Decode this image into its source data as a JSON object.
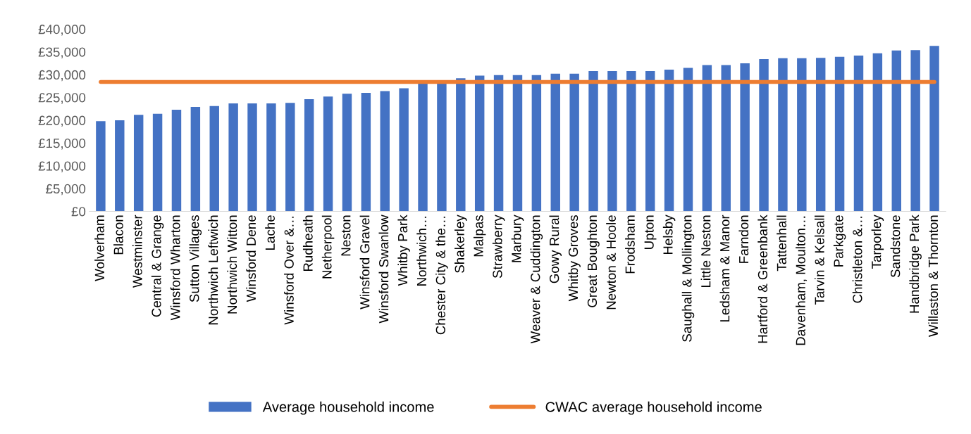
{
  "chart_data": {
    "type": "bar",
    "categories": [
      "Wolverham",
      "Blacon",
      "Westminster",
      "Central & Grange",
      "Winsford Wharton",
      "Sutton Villages",
      "Northwich Leftwich",
      "Northwich Witton",
      "Winsford Dene",
      "Lache",
      "Winsford Over &…",
      "Rudheath",
      "Netherpool",
      "Neston",
      "Winsford Gravel",
      "Winsford Swanlow",
      "Whitby Park",
      "Northwich…",
      "Chester City & the…",
      "Shakerley",
      "Malpas",
      "Strawberry",
      "Marbury",
      "Weaver & Cuddington",
      "Gowy Rural",
      "Whitby Groves",
      "Great Boughton",
      "Newton & Hoole",
      "Frodsham",
      "Upton",
      "Helsby",
      "Saughall & Mollington",
      "Little Neston",
      "Ledsham & Manor",
      "Farndon",
      "Hartford & Greenbank",
      "Tattenhall",
      "Davenham, Moulton…",
      "Tarvin & Kelsall",
      "Parkgate",
      "Christleton &…",
      "Tarporley",
      "Sandstone",
      "Handbridge Park",
      "Willaston & Thornton"
    ],
    "series": [
      {
        "name": "Average household income",
        "color": "#4472c4",
        "values": [
          19800,
          20000,
          21200,
          21400,
          22300,
          22900,
          23100,
          23700,
          23700,
          23700,
          23800,
          24600,
          25200,
          25800,
          26000,
          26400,
          27000,
          28100,
          28100,
          29200,
          29800,
          29900,
          29900,
          29900,
          30200,
          30200,
          30800,
          30800,
          30800,
          30800,
          31100,
          31500,
          32100,
          32100,
          32500,
          33400,
          33600,
          33600,
          33700,
          33900,
          34200,
          34700,
          35300,
          35400,
          36300
        ]
      },
      {
        "name": "CWAC average household income",
        "type": "line",
        "color": "#ed7d31",
        "values": [
          28400,
          28400,
          28400,
          28400,
          28400,
          28400,
          28400,
          28400,
          28400,
          28400,
          28400,
          28400,
          28400,
          28400,
          28400,
          28400,
          28400,
          28400,
          28400,
          28400,
          28400,
          28400,
          28400,
          28400,
          28400,
          28400,
          28400,
          28400,
          28400,
          28400,
          28400,
          28400,
          28400,
          28400,
          28400,
          28400,
          28400,
          28400,
          28400,
          28400,
          28400,
          28400,
          28400,
          28400,
          28400
        ]
      }
    ],
    "ylim": [
      0,
      40000
    ],
    "yticks": [
      {
        "value": 0,
        "label": "£0"
      },
      {
        "value": 5000,
        "label": "£5,000"
      },
      {
        "value": 10000,
        "label": "£10,000"
      },
      {
        "value": 15000,
        "label": "£15,000"
      },
      {
        "value": 20000,
        "label": "£20,000"
      },
      {
        "value": 25000,
        "label": "£25,000"
      },
      {
        "value": 30000,
        "label": "£30,000"
      },
      {
        "value": 35000,
        "label": "£35,000"
      },
      {
        "value": 40000,
        "label": "£40,000"
      }
    ],
    "grid": false,
    "legend": "bottom"
  }
}
